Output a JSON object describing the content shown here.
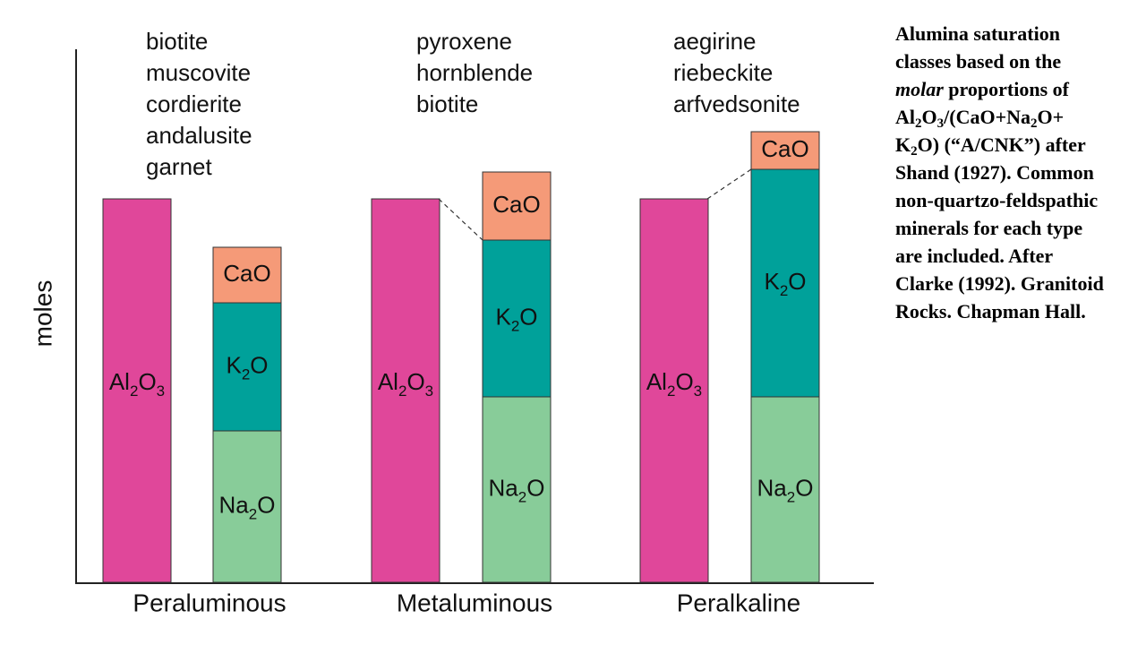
{
  "y_axis_label": "moles",
  "groups": [
    {
      "name": "Peraluminous",
      "minerals": [
        "biotite",
        "muscovite",
        "cordierite",
        "andalusite",
        "garnet"
      ],
      "labels": [
        [
          "Al",
          "2",
          "O",
          "3"
        ],
        [
          "CaO"
        ],
        [
          "K",
          "2",
          "O"
        ],
        [
          "Na",
          "2",
          "O"
        ]
      ]
    },
    {
      "name": "Metaluminous",
      "minerals": [
        "pyroxene",
        "hornblende",
        "biotite"
      ],
      "labels": [
        [
          "Al",
          "2",
          "O",
          "3"
        ],
        [
          "CaO"
        ],
        [
          "K",
          "2",
          "O"
        ],
        [
          "Na",
          "2",
          "O"
        ]
      ]
    },
    {
      "name": "Peralkaline",
      "minerals": [
        "aegirine",
        "riebeckite",
        "arfvedsonite"
      ],
      "labels": [
        [
          "Al",
          "2",
          "O",
          "3"
        ],
        [
          "CaO"
        ],
        [
          "K",
          "2",
          "O"
        ],
        [
          "Na",
          "2",
          "O"
        ]
      ]
    }
  ],
  "caption": [
    "Alumina saturation classes based on the ",
    "molar",
    " proportions of Al",
    "2",
    "O",
    "3",
    "/(CaO+Na",
    "2",
    "O+ K",
    "2",
    "O) (“A/CNK”) after Shand (1927). Common non-quartzo-feldspathic minerals for each type are included. After Clarke (1992). Granitoid Rocks. Chapman Hall."
  ]
}
